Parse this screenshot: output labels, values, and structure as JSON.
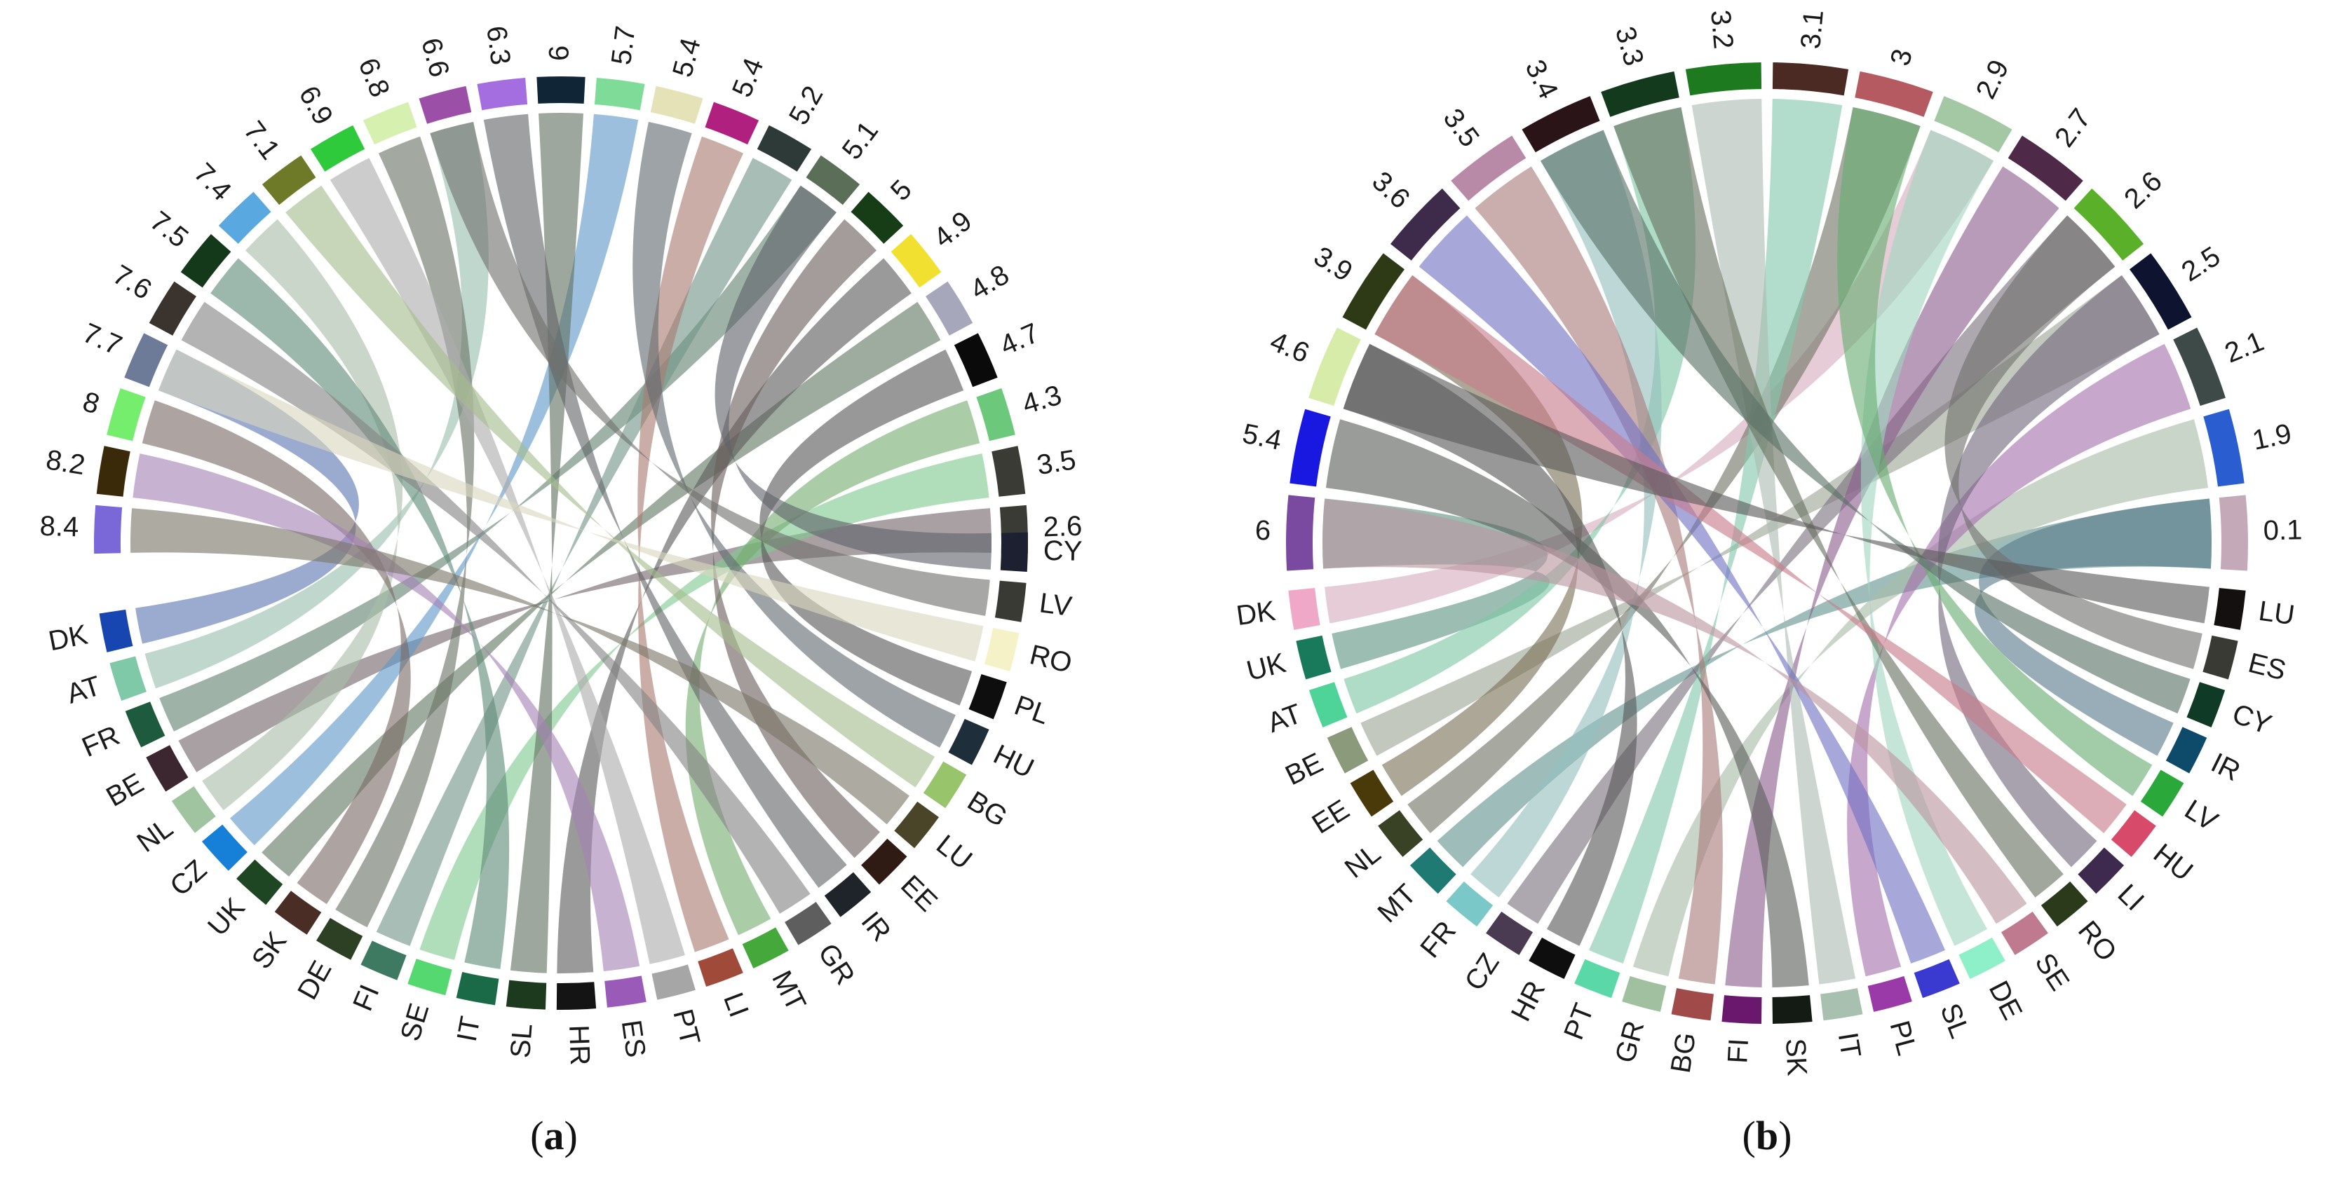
{
  "chart_data": [
    {
      "type": "chord",
      "panel": "a",
      "panel_label": "a",
      "value_segments": [
        {
          "label": "8.4",
          "color": "#7b68d8"
        },
        {
          "label": "8.2",
          "color": "#3a2a0a"
        },
        {
          "label": "8",
          "color": "#74ee6c"
        },
        {
          "label": "7.7",
          "color": "#6d7a98"
        },
        {
          "label": "7.6",
          "color": "#3b342e"
        },
        {
          "label": "7.5",
          "color": "#14391a"
        },
        {
          "label": "7.4",
          "color": "#5aa8e0"
        },
        {
          "label": "7.1",
          "color": "#6f7a28"
        },
        {
          "label": "6.9",
          "color": "#2fca3c"
        },
        {
          "label": "6.8",
          "color": "#d6f0b0"
        },
        {
          "label": "6.6",
          "color": "#9c4fa6"
        },
        {
          "label": "6.3",
          "color": "#a56ee0"
        },
        {
          "label": "6",
          "color": "#102536"
        },
        {
          "label": "5.7",
          "color": "#7edc98"
        },
        {
          "label": "5.4",
          "color": "#e5e2b8"
        },
        {
          "label": "5.4",
          "color": "#b0207e"
        },
        {
          "label": "5.2",
          "color": "#2d3a38"
        },
        {
          "label": "5.1",
          "color": "#5a6e58"
        },
        {
          "label": "5",
          "color": "#173d16"
        },
        {
          "label": "4.9",
          "color": "#f2e030"
        },
        {
          "label": "4.8",
          "color": "#a7a7bc"
        },
        {
          "label": "4.7",
          "color": "#0a0a0a"
        },
        {
          "label": "4.3",
          "color": "#6cc87a"
        },
        {
          "label": "3.5",
          "color": "#3b3b35"
        },
        {
          "label": "2.6",
          "color": "#3b3b35"
        }
      ],
      "country_segments": [
        {
          "label": "DK",
          "color": "#1846b0"
        },
        {
          "label": "AT",
          "color": "#7fc8a8"
        },
        {
          "label": "FR",
          "color": "#1e5a3e"
        },
        {
          "label": "BE",
          "color": "#3c2630"
        },
        {
          "label": "NL",
          "color": "#a0c4a0"
        },
        {
          "label": "CZ",
          "color": "#1680d8"
        },
        {
          "label": "UK",
          "color": "#1f4622"
        },
        {
          "label": "SK",
          "color": "#4a2e26"
        },
        {
          "label": "DE",
          "color": "#2e4024"
        },
        {
          "label": "FI",
          "color": "#3e7a62"
        },
        {
          "label": "SE",
          "color": "#56d870"
        },
        {
          "label": "IT",
          "color": "#1a6a48"
        },
        {
          "label": "SL",
          "color": "#1e3a1e"
        },
        {
          "label": "HR",
          "color": "#141414"
        },
        {
          "label": "ES",
          "color": "#9a5ab8"
        },
        {
          "label": "PT",
          "color": "#a6a6a6"
        },
        {
          "label": "LI",
          "color": "#a04a3a"
        },
        {
          "label": "MT",
          "color": "#44a83a"
        },
        {
          "label": "GR",
          "color": "#5e5e5e"
        },
        {
          "label": "IR",
          "color": "#1e242a"
        },
        {
          "label": "EE",
          "color": "#301a14"
        },
        {
          "label": "LU",
          "color": "#4a4428"
        },
        {
          "label": "BG",
          "color": "#98c46c"
        },
        {
          "label": "HU",
          "color": "#1e2e3a"
        },
        {
          "label": "PL",
          "color": "#0e0e0e"
        },
        {
          "label": "RO",
          "color": "#f6f2c8"
        },
        {
          "label": "LV",
          "color": "#3a3a34"
        },
        {
          "label": "CY",
          "color": "#1c2030"
        }
      ]
    },
    {
      "type": "chord",
      "panel": "b",
      "panel_label": "b",
      "value_segments": [
        {
          "label": "6",
          "color": "#7a4aa0"
        },
        {
          "label": "5.4",
          "color": "#1818e0"
        },
        {
          "label": "4.6",
          "color": "#d6eca8"
        },
        {
          "label": "3.9",
          "color": "#2e3a16"
        },
        {
          "label": "3.6",
          "color": "#3e2a4a"
        },
        {
          "label": "3.5",
          "color": "#b88aa8"
        },
        {
          "label": "3.4",
          "color": "#2a1418"
        },
        {
          "label": "3.3",
          "color": "#143a1e"
        },
        {
          "label": "3.2",
          "color": "#1e7a1e"
        },
        {
          "label": "3.1",
          "color": "#4a2a22"
        },
        {
          "label": "3",
          "color": "#b65a62"
        },
        {
          "label": "2.9",
          "color": "#a4c8a4"
        },
        {
          "label": "2.7",
          "color": "#4e2a48"
        },
        {
          "label": "2.6",
          "color": "#5ab028"
        },
        {
          "label": "2.5",
          "color": "#0e1430"
        },
        {
          "label": "2.1",
          "color": "#3e4a48"
        },
        {
          "label": "1.9",
          "color": "#2a5ed0"
        },
        {
          "label": "0.1",
          "color": "#c4aab8"
        }
      ],
      "country_segments": [
        {
          "label": "DK",
          "color": "#f0a8c8"
        },
        {
          "label": "UK",
          "color": "#187a5a"
        },
        {
          "label": "AT",
          "color": "#4ed498"
        },
        {
          "label": "BE",
          "color": "#8a9a7a"
        },
        {
          "label": "EE",
          "color": "#4a3a0a"
        },
        {
          "label": "NL",
          "color": "#3a4226"
        },
        {
          "label": "MT",
          "color": "#1e7a72"
        },
        {
          "label": "FR",
          "color": "#7ac8c8"
        },
        {
          "label": "CZ",
          "color": "#4a3a52"
        },
        {
          "label": "HR",
          "color": "#0e0e0e"
        },
        {
          "label": "PT",
          "color": "#5ad8a8"
        },
        {
          "label": "GR",
          "color": "#a0c0a0"
        },
        {
          "label": "BG",
          "color": "#a04a4a"
        },
        {
          "label": "FI",
          "color": "#6a186e"
        },
        {
          "label": "SK",
          "color": "#141a14"
        },
        {
          "label": "IT",
          "color": "#a8c0b0"
        },
        {
          "label": "PL",
          "color": "#9a3aa8"
        },
        {
          "label": "SL",
          "color": "#3a3ad0"
        },
        {
          "label": "DE",
          "color": "#8ef0c8"
        },
        {
          "label": "SE",
          "color": "#c07a90"
        },
        {
          "label": "RO",
          "color": "#2a3a1a"
        },
        {
          "label": "LI",
          "color": "#3e2a4e"
        },
        {
          "label": "HU",
          "color": "#d84a6a"
        },
        {
          "label": "LV",
          "color": "#2aa83a"
        },
        {
          "label": "IR",
          "color": "#0e4a6a"
        },
        {
          "label": "CY",
          "color": "#0e3a26"
        },
        {
          "label": "ES",
          "color": "#3a3a34"
        },
        {
          "label": "LU",
          "color": "#141010"
        }
      ]
    }
  ]
}
